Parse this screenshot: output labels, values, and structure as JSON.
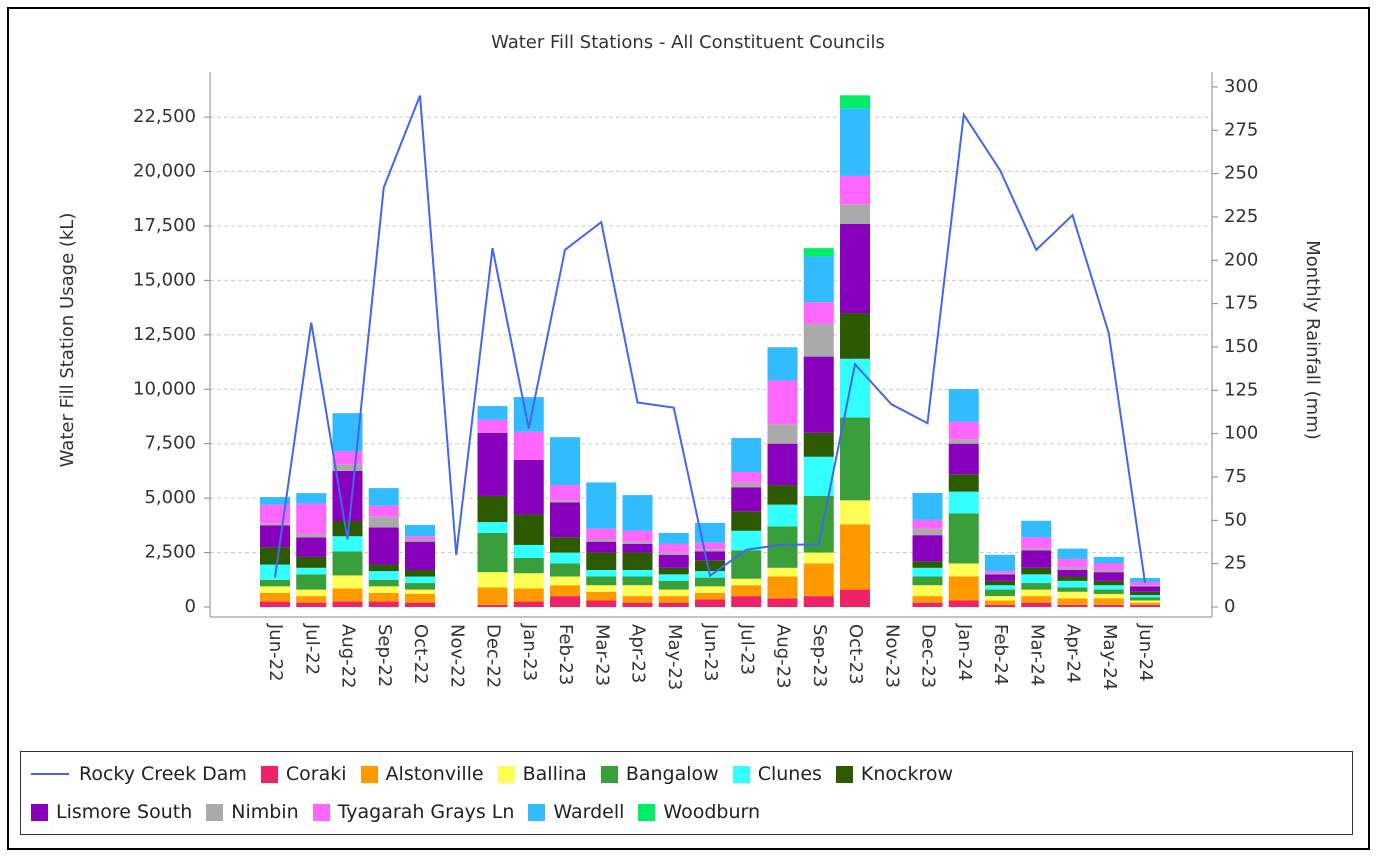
{
  "chart_data": {
    "type": "bar",
    "title": "Water Fill Stations - All Constituent Councils",
    "y_label": "Water Fill Station Usage (kL)",
    "y2_label": "Monthly Rainfall (mm)",
    "categories": [
      "Jun-22",
      "Jul-22",
      "Aug-22",
      "Sep-22",
      "Oct-22",
      "Nov-22",
      "Dec-22",
      "Jan-23",
      "Feb-23",
      "Mar-23",
      "Apr-23",
      "May-23",
      "Jun-23",
      "Jul-23",
      "Aug-23",
      "Sep-23",
      "Oct-23",
      "Nov-23",
      "Dec-23",
      "Jan-24",
      "Feb-24",
      "Mar-24",
      "Apr-24",
      "May-24",
      "Jun-24"
    ],
    "ylim": [
      0,
      24570
    ],
    "yticks": [
      0,
      {
        "value": 2500,
        "label": "2,500"
      },
      {
        "value": 5000,
        "label": "5,000"
      },
      {
        "value": 7500,
        "label": "7,500"
      },
      {
        "value": 10000,
        "label": "10,000"
      },
      {
        "value": 12500,
        "label": "12,500"
      },
      {
        "value": 15000,
        "label": "15,000"
      },
      {
        "value": 17500,
        "label": "17,500"
      },
      {
        "value": 20000,
        "label": "20,000"
      },
      {
        "value": 22500,
        "label": "22,500"
      }
    ],
    "y2lim": [
      0,
      308.6
    ],
    "y2ticks": [
      0,
      25,
      50,
      75,
      100,
      125,
      150,
      175,
      200,
      225,
      250,
      275,
      300
    ],
    "grid": true,
    "stacked": true,
    "series": [
      {
        "name": "Rocky Creek Dam",
        "type": "line",
        "axis": "y2",
        "color": "#4466ee",
        "values": [
          17,
          164,
          39,
          242,
          295,
          30,
          207,
          103,
          206,
          222,
          118,
          115,
          18,
          33,
          36,
          36,
          140,
          117,
          106,
          284,
          252,
          206,
          226,
          158,
          14
        ]
      },
      {
        "name": "Coraki",
        "type": "bar",
        "color": "#ee2266",
        "values": [
          250,
          200,
          250,
          250,
          200,
          null,
          100,
          250,
          500,
          300,
          200,
          200,
          350,
          500,
          400,
          500,
          800,
          null,
          200,
          300,
          100,
          200,
          100,
          100,
          100
        ]
      },
      {
        "name": "Alstonville",
        "type": "bar",
        "color": "#ff9900",
        "values": [
          400,
          300,
          600,
          400,
          400,
          null,
          800,
          600,
          500,
          400,
          300,
          300,
          300,
          500,
          1000,
          1500,
          3000,
          null,
          300,
          1100,
          200,
          300,
          300,
          300,
          100
        ]
      },
      {
        "name": "Ballina",
        "type": "bar",
        "color": "#ffff55",
        "values": [
          300,
          300,
          600,
          300,
          200,
          null,
          700,
          700,
          400,
          300,
          500,
          300,
          300,
          300,
          400,
          500,
          1100,
          null,
          500,
          600,
          200,
          300,
          300,
          200,
          100
        ]
      },
      {
        "name": "Bangalow",
        "type": "bar",
        "color": "#3a9e3a",
        "values": [
          300,
          700,
          1100,
          300,
          300,
          null,
          1800,
          700,
          600,
          400,
          400,
          400,
          400,
          1300,
          1900,
          2600,
          3800,
          null,
          400,
          2300,
          300,
          300,
          200,
          200,
          150
        ]
      },
      {
        "name": "Clunes",
        "type": "bar",
        "color": "#33ffff",
        "values": [
          700,
          300,
          700,
          400,
          300,
          null,
          500,
          600,
          500,
          300,
          300,
          300,
          300,
          900,
          1000,
          1800,
          2700,
          null,
          400,
          1000,
          200,
          400,
          300,
          200,
          100
        ]
      },
      {
        "name": "Knockrow",
        "type": "bar",
        "color": "#2d5a00",
        "values": [
          800,
          500,
          700,
          300,
          300,
          null,
          1200,
          1400,
          700,
          800,
          800,
          300,
          500,
          900,
          900,
          1100,
          2100,
          null,
          300,
          800,
          200,
          300,
          200,
          200,
          150
        ]
      },
      {
        "name": "Lismore South",
        "type": "bar",
        "color": "#8800bb",
        "values": [
          1000,
          900,
          2300,
          1700,
          1300,
          null,
          2900,
          2500,
          1600,
          500,
          400,
          600,
          400,
          1100,
          1900,
          3500,
          4100,
          null,
          1200,
          1400,
          300,
          800,
          300,
          400,
          250
        ]
      },
      {
        "name": "Nimbin",
        "type": "bar",
        "color": "#aaaaaa",
        "values": [
          100,
          150,
          300,
          500,
          100,
          null,
          0,
          0,
          100,
          100,
          100,
          100,
          100,
          200,
          900,
          1500,
          900,
          null,
          300,
          200,
          50,
          100,
          100,
          100,
          50
        ]
      },
      {
        "name": "Tyagarah Grays Ln",
        "type": "bar",
        "color": "#ff66ff",
        "values": [
          850,
          1400,
          600,
          500,
          150,
          null,
          600,
          1300,
          700,
          500,
          500,
          400,
          300,
          500,
          2000,
          1000,
          1300,
          null,
          400,
          800,
          100,
          500,
          400,
          300,
          150
        ]
      },
      {
        "name": "Wardell",
        "type": "bar",
        "color": "#33bbff",
        "values": [
          350,
          480,
          1750,
          810,
          520,
          null,
          630,
          1590,
          2200,
          2120,
          1640,
          500,
          910,
          1560,
          1530,
          2100,
          3100,
          null,
          1240,
          1510,
          750,
          760,
          480,
          300,
          180
        ]
      },
      {
        "name": "Woodburn",
        "type": "bar",
        "color": "#00ee66",
        "values": [
          0,
          0,
          0,
          0,
          0,
          null,
          0,
          0,
          0,
          0,
          0,
          0,
          0,
          0,
          0,
          380,
          600,
          null,
          0,
          0,
          0,
          0,
          0,
          0,
          0
        ]
      }
    ]
  }
}
